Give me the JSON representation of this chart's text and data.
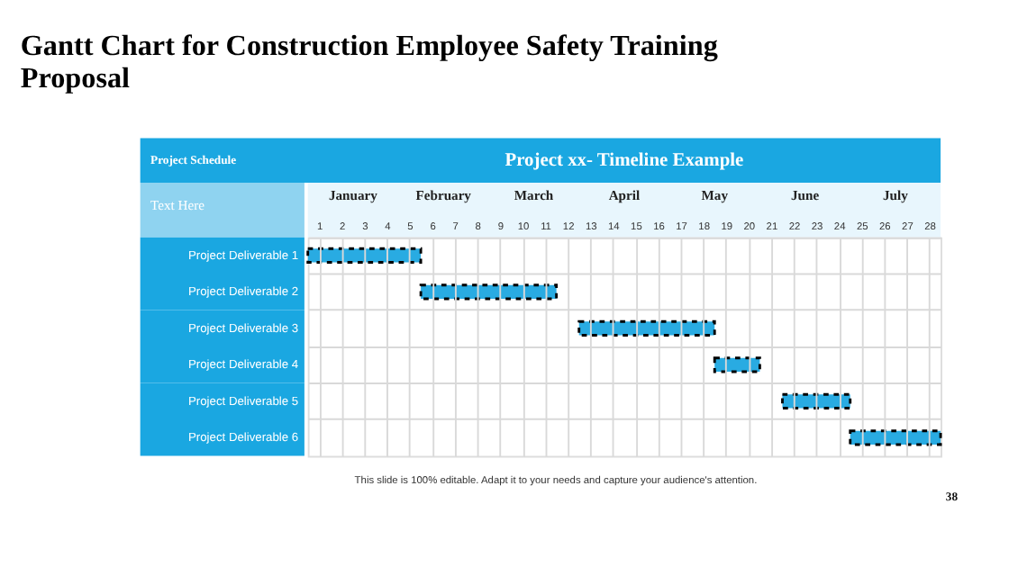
{
  "chart_data": {
    "type": "bar",
    "orientation": "horizontal",
    "title": "Gantt Chart for Construction Employee Safety Training Proposal",
    "subtitle": "Project xx- Timeline Example",
    "categories": [
      "Project Deliverable 1",
      "Project Deliverable 2",
      "Project Deliverable 3",
      "Project Deliverable 4",
      "Project Deliverable 5",
      "Project Deliverable 6"
    ],
    "values": [
      5,
      6,
      6,
      2,
      3,
      4
    ],
    "base": [
      0,
      5,
      12,
      18,
      21,
      24
    ],
    "color": "#29abe2",
    "xlim": [
      0,
      28
    ],
    "xticks": [
      {
        "value": 0.5,
        "label": "1"
      },
      {
        "value": 1.5,
        "label": "2"
      },
      {
        "value": 2.5,
        "label": "3"
      },
      {
        "value": 3.5,
        "label": "4"
      },
      {
        "value": 4.5,
        "label": "5"
      },
      {
        "value": 5.5,
        "label": "6"
      },
      {
        "value": 6.5,
        "label": "7"
      },
      {
        "value": 7.5,
        "label": "8"
      },
      {
        "value": 8.5,
        "label": "9"
      },
      {
        "value": 9.5,
        "label": "10"
      },
      {
        "value": 10.5,
        "label": "11"
      },
      {
        "value": 11.5,
        "label": "12"
      },
      {
        "value": 12.5,
        "label": "13"
      },
      {
        "value": 13.5,
        "label": "14"
      },
      {
        "value": 14.5,
        "label": "15"
      },
      {
        "value": 15.5,
        "label": "16"
      },
      {
        "value": 16.5,
        "label": "17"
      },
      {
        "value": 17.5,
        "label": "18"
      },
      {
        "value": 18.5,
        "label": "19"
      },
      {
        "value": 19.5,
        "label": "20"
      },
      {
        "value": 20.5,
        "label": "21"
      },
      {
        "value": 21.5,
        "label": "22"
      },
      {
        "value": 22.5,
        "label": "23"
      },
      {
        "value": 23.5,
        "label": "24"
      },
      {
        "value": 24.5,
        "label": "25"
      },
      {
        "value": 25.5,
        "label": "26"
      },
      {
        "value": 26.5,
        "label": "27"
      },
      {
        "value": 27.5,
        "label": "28"
      }
    ],
    "grid": true,
    "annotations": [
      "Project Schedule",
      "Text Here",
      "January",
      "February",
      "March",
      "April",
      "May",
      "June",
      "July",
      "This slide is 100% editable. Adapt it to your needs and capture your audience's attention.",
      "38"
    ]
  }
}
